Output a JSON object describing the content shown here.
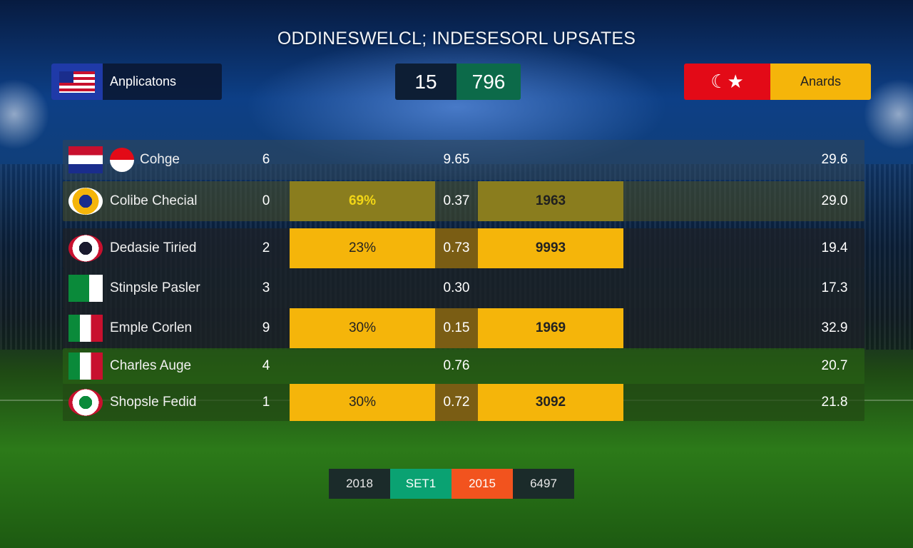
{
  "title": "ODDINESWELCL; INDESESORL UPSATES",
  "left_panel": {
    "label": "Anplicatons"
  },
  "score": {
    "a": "15",
    "b": "796"
  },
  "right_panel": {
    "label": "Anards"
  },
  "colors": {
    "accent_yellow": "#f5b50a",
    "accent_green": "#0aa272",
    "accent_orange": "#f2531e",
    "turkey_red": "#e30a17"
  },
  "rows": [
    {
      "flag": "multi-flag",
      "team": "Cohge",
      "num": "6",
      "pct": "",
      "odd": "9.65",
      "count": "",
      "val": "29.6"
    },
    {
      "flag": "round-flag",
      "team": "Colibe Checial",
      "num": "0",
      "pct": "69%",
      "odd": "0.37",
      "count": "1963",
      "val": "29.0"
    },
    {
      "flag": "round-flag",
      "team": "Dedasie Tiried",
      "num": "2",
      "pct": "23%",
      "odd": "0.73",
      "count": "9993",
      "val": "19.4"
    },
    {
      "flag": "rect-flag",
      "team": "Stinpsle Pasler",
      "num": "3",
      "pct": "",
      "odd": "0.30",
      "count": "",
      "val": "17.3"
    },
    {
      "flag": "rect-flag",
      "team": "Emple Corlen",
      "num": "9",
      "pct": "30%",
      "odd": "0.15",
      "count": "1969",
      "val": "32.9"
    },
    {
      "flag": "rect-flag",
      "team": "Charles Auge",
      "num": "4",
      "pct": "",
      "odd": "0.76",
      "count": "",
      "val": "20.7"
    },
    {
      "flag": "round-flag",
      "team": "Shopsle Fedid",
      "num": "1",
      "pct": "30%",
      "odd": "0.72",
      "count": "3092",
      "val": "21.8"
    }
  ],
  "footer": [
    "2018",
    "SET1",
    "2015",
    "6497"
  ]
}
